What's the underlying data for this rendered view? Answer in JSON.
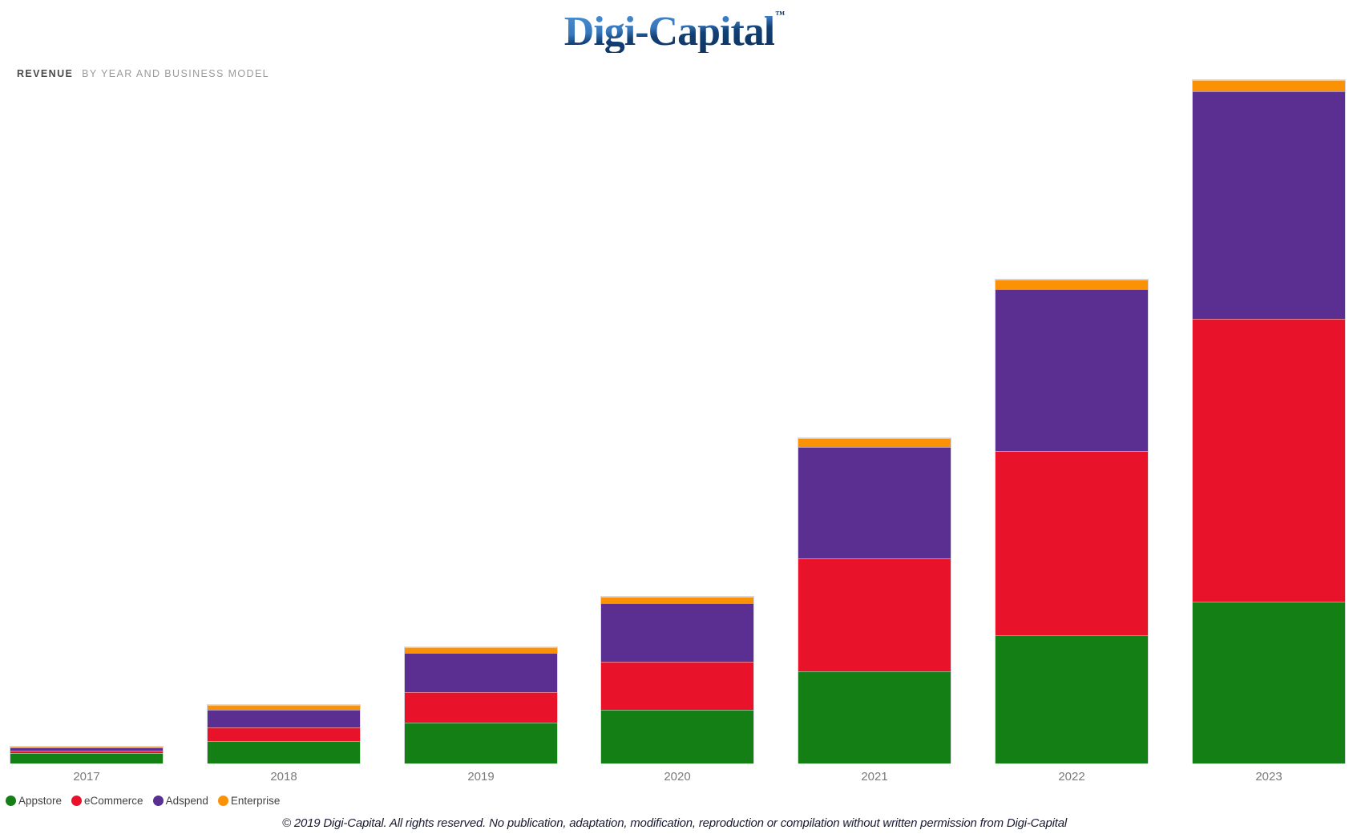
{
  "logo": {
    "text": "Digi-Capital",
    "tm": "™",
    "color_top": "#4b93d6",
    "color_bottom": "#0c2f5a"
  },
  "header": {
    "title_bold": "REVENUE",
    "title_rest": "BY YEAR AND BUSINESS MODEL"
  },
  "chart_data": {
    "type": "bar",
    "stacked": true,
    "title": "Revenue by year and business model",
    "xlabel": "",
    "ylabel": "",
    "unit": "relative height in px — chart displays no numeric value axis",
    "categories": [
      "2017",
      "2018",
      "2019",
      "2020",
      "2021",
      "2022",
      "2023"
    ],
    "series": [
      {
        "name": "Appstore",
        "color": "#147F14",
        "values": [
          13,
          28,
          51,
          67,
          115,
          160,
          202
        ]
      },
      {
        "name": "eCommerce",
        "color": "#E8132B",
        "values": [
          3,
          17,
          38,
          60,
          141,
          230,
          353
        ]
      },
      {
        "name": "Adspend",
        "color": "#5B2E91",
        "values": [
          4,
          22,
          49,
          73,
          139,
          202,
          284
        ]
      },
      {
        "name": "Enterprise",
        "color": "#FB9105",
        "values": [
          1,
          6,
          7,
          8,
          11,
          12,
          14
        ]
      }
    ],
    "totals_relative": [
      21,
      73,
      145,
      208,
      406,
      604,
      853
    ],
    "ylim": [
      0,
      860
    ],
    "grid": false,
    "value_axis_shown": false,
    "legend_position": "bottom-left"
  },
  "legend": {
    "items": [
      {
        "label": "Appstore",
        "color": "#147F14"
      },
      {
        "label": "eCommerce",
        "color": "#E8132B"
      },
      {
        "label": "Adspend",
        "color": "#5B2E91"
      },
      {
        "label": "Enterprise",
        "color": "#FB9105"
      }
    ]
  },
  "footer": {
    "copyright": "© 2019 Digi-Capital. All rights reserved. No publication, adaptation, modification, reproduction or compilation without written permission from Digi-Capital"
  }
}
